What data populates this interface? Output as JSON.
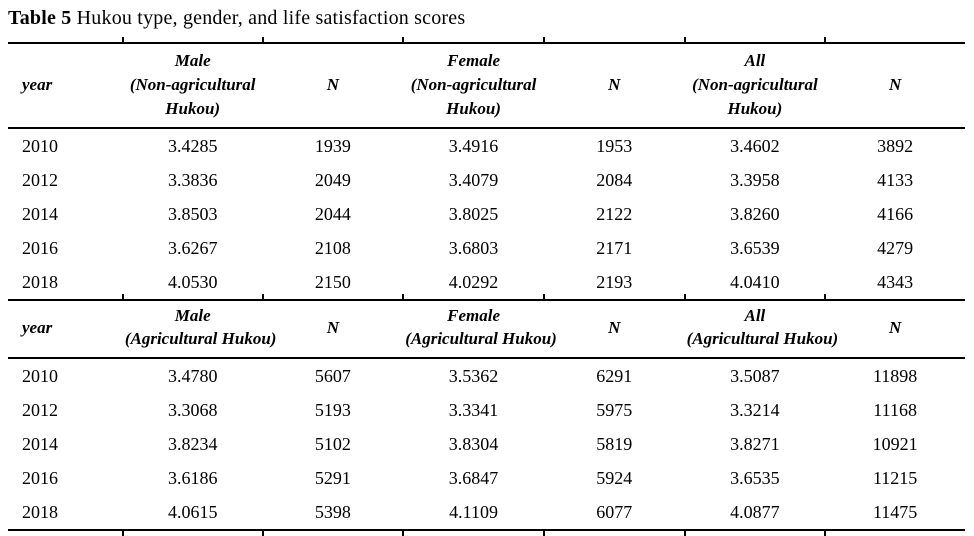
{
  "title": {
    "bold": "Table 5",
    "rest": " Hukou type, gender, and life satisfaction scores"
  },
  "colors": {
    "text": "#000000",
    "rules": "#000000",
    "background": "#ffffff"
  },
  "table": {
    "sections": [
      {
        "headers": [
          "year",
          "Male\n(Non-agricultural\nHukou)",
          "N",
          "Female\n(Non-agricultural\nHukou)",
          "N",
          "All\n(Non-agricultural\nHukou)",
          "N"
        ],
        "rows": [
          [
            "2010",
            "3.4285",
            "1939",
            "3.4916",
            "1953",
            "3.4602",
            "3892"
          ],
          [
            "2012",
            "3.3836",
            "2049",
            "3.4079",
            "2084",
            "3.3958",
            "4133"
          ],
          [
            "2014",
            "3.8503",
            "2044",
            "3.8025",
            "2122",
            "3.8260",
            "4166"
          ],
          [
            "2016",
            "3.6267",
            "2108",
            "3.6803",
            "2171",
            "3.6539",
            "4279"
          ],
          [
            "2018",
            "4.0530",
            "2150",
            "4.0292",
            "2193",
            "4.0410",
            "4343"
          ]
        ]
      },
      {
        "headers": [
          "year",
          "Male\n(Agricultural Hukou)",
          "N",
          "Female\n(Agricultural Hukou)",
          "N",
          "All\n(Agricultural Hukou)",
          "N"
        ],
        "rows": [
          [
            "2010",
            "3.4780",
            "5607",
            "3.5362",
            "6291",
            "3.5087",
            "11898"
          ],
          [
            "2012",
            "3.3068",
            "5193",
            "3.3341",
            "5975",
            "3.3214",
            "11168"
          ],
          [
            "2014",
            "3.8234",
            "5102",
            "3.8304",
            "5819",
            "3.8271",
            "10921"
          ],
          [
            "2016",
            "3.6186",
            "5291",
            "3.6847",
            "5924",
            "3.6535",
            "11215"
          ],
          [
            "2018",
            "4.0615",
            "5398",
            "4.1109",
            "6077",
            "4.0877",
            "11475"
          ]
        ]
      }
    ]
  }
}
